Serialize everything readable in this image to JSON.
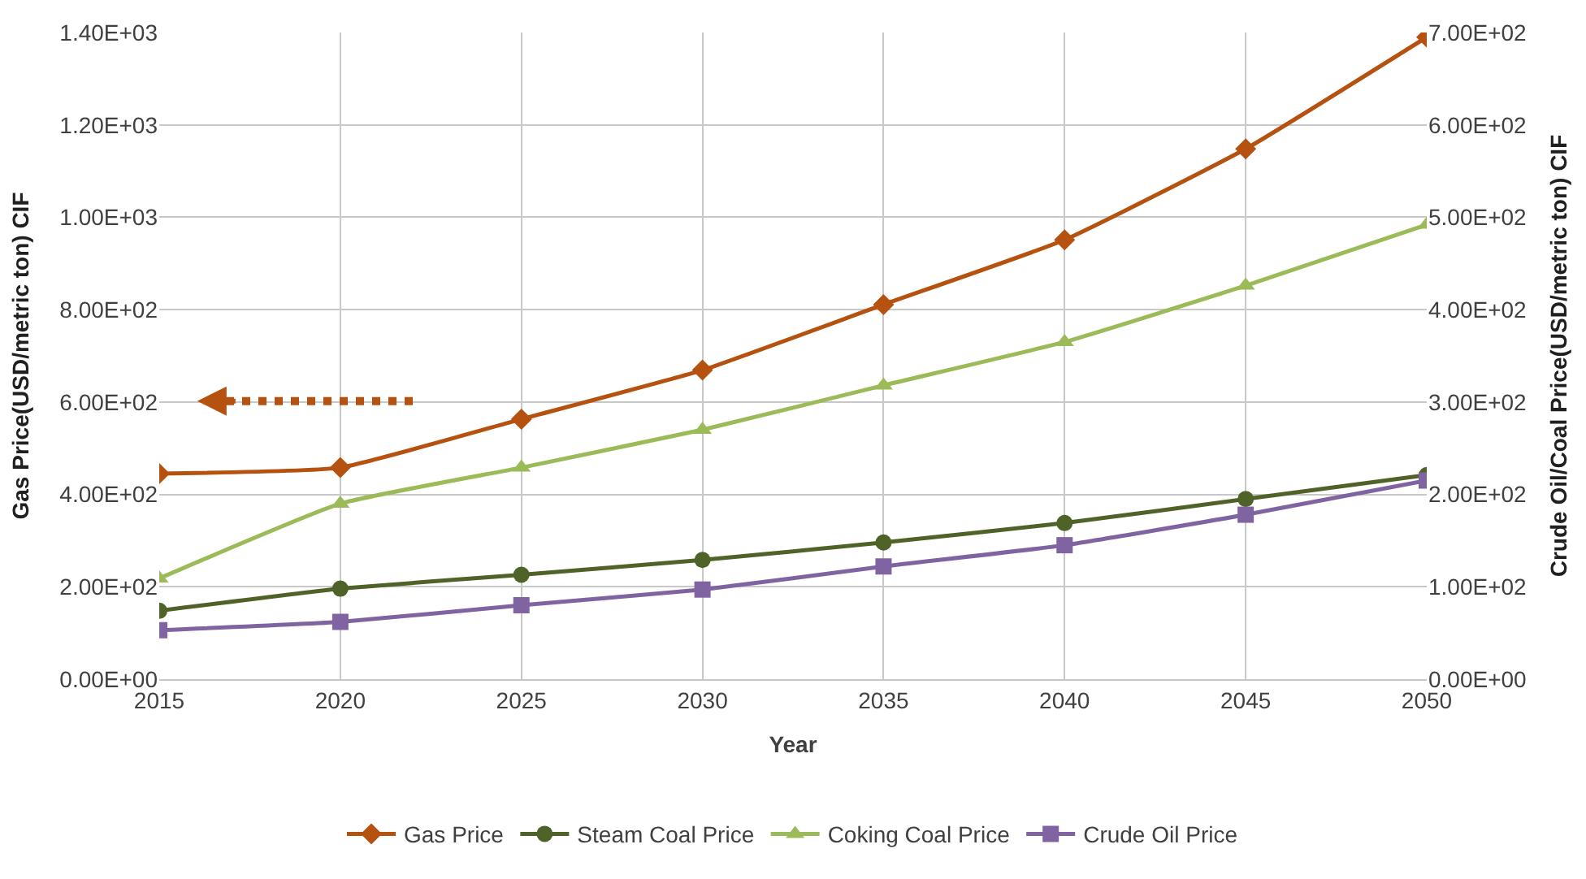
{
  "chart_data": {
    "type": "line",
    "xlabel": "Year",
    "ylabel": "Gas Price(USD/metric ton) CIF",
    "y2label": "Crude Oil/Coal Price(USD/metric ton) CIF",
    "x": [
      2015,
      2020,
      2025,
      2030,
      2035,
      2040,
      2045,
      2050
    ],
    "xlim": [
      2015,
      2050
    ],
    "xticks": [
      2015,
      2020,
      2025,
      2030,
      2035,
      2040,
      2045,
      2050
    ],
    "ylim": [
      0,
      1400
    ],
    "yticks": [
      {
        "value": 0,
        "label": "0.00E+00"
      },
      {
        "value": 200,
        "label": "2.00E+02"
      },
      {
        "value": 400,
        "label": "4.00E+02"
      },
      {
        "value": 600,
        "label": "6.00E+02"
      },
      {
        "value": 800,
        "label": "8.00E+02"
      },
      {
        "value": 1000,
        "label": "1.00E+03"
      },
      {
        "value": 1200,
        "label": "1.20E+03"
      },
      {
        "value": 1400,
        "label": "1.40E+03"
      }
    ],
    "y2lim": [
      0,
      700
    ],
    "y2ticks": [
      {
        "value": 0,
        "label": "0.00E+00"
      },
      {
        "value": 100,
        "label": "1.00E+02"
      },
      {
        "value": 200,
        "label": "2.00E+02"
      },
      {
        "value": 300,
        "label": "3.00E+02"
      },
      {
        "value": 400,
        "label": "4.00E+02"
      },
      {
        "value": 500,
        "label": "5.00E+02"
      },
      {
        "value": 600,
        "label": "6.00E+02"
      },
      {
        "value": 700,
        "label": "7.00E+02"
      }
    ],
    "grid": true,
    "legend": "bottom",
    "line_style": "solid",
    "series": [
      {
        "name": "Gas Price",
        "color": "#b5520f",
        "marker": "diamond",
        "values": [
          445,
          458,
          563,
          669,
          811,
          951,
          1148,
          1390
        ]
      },
      {
        "name": "Steam Coal Price",
        "color": "#4f6228",
        "marker": "circle",
        "axis": "y2",
        "values": [
          74,
          98,
          113,
          129,
          148,
          169,
          195,
          221
        ]
      },
      {
        "name": "Coking Coal Price",
        "color": "#9bbb59",
        "marker": "triangle",
        "axis": "y2",
        "values": [
          109,
          190,
          229,
          270,
          318,
          365,
          426,
          492
        ]
      },
      {
        "name": "Crude Oil Price",
        "color": "#8064a2",
        "marker": "square",
        "axis": "y2",
        "values": [
          53,
          62,
          80,
          97,
          122,
          145,
          178,
          215
        ]
      }
    ]
  }
}
